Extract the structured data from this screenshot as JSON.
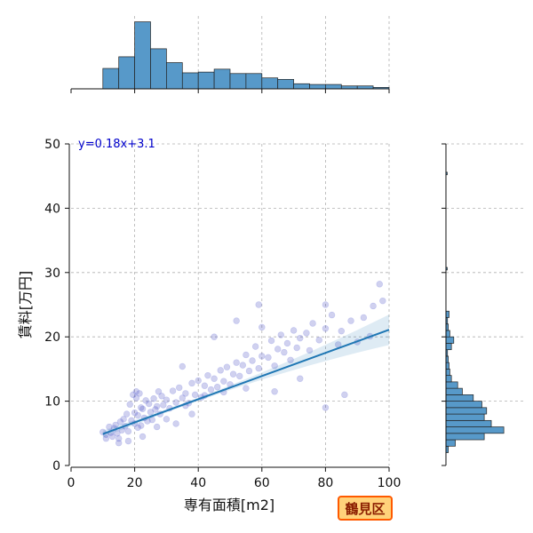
{
  "chart_data": {
    "type": "scatter",
    "xlabel": "専有面積[m2]",
    "ylabel": "賃料[万円]",
    "xlim": [
      0,
      100
    ],
    "ylim": [
      0,
      50
    ],
    "x_ticks": [
      0,
      20,
      40,
      60,
      80,
      100
    ],
    "y_ticks": [
      0,
      10,
      20,
      30,
      40,
      50
    ],
    "grid": true,
    "annotation": "y=0.18x+3.1",
    "regression": {
      "slope": 0.18,
      "intercept": 3.1,
      "x_range": [
        10,
        100
      ]
    },
    "badge": "鶴見区",
    "scatter_points": [
      [
        10,
        5.2
      ],
      [
        11,
        4.8
      ],
      [
        12,
        6.0
      ],
      [
        12.5,
        5.1
      ],
      [
        13,
        4.5
      ],
      [
        13.5,
        5.8
      ],
      [
        14,
        6.3
      ],
      [
        14.5,
        5.0
      ],
      [
        15,
        4.2
      ],
      [
        15.5,
        6.8
      ],
      [
        16,
        5.5
      ],
      [
        16.5,
        7.2
      ],
      [
        17,
        6.1
      ],
      [
        17.5,
        8.0
      ],
      [
        18,
        5.3
      ],
      [
        18.5,
        9.5
      ],
      [
        19,
        7.0
      ],
      [
        19.5,
        11.0
      ],
      [
        20,
        6.5
      ],
      [
        20,
        8.2
      ],
      [
        20.5,
        10.5
      ],
      [
        21,
        7.8
      ],
      [
        21,
        5.9
      ],
      [
        21.5,
        11.2
      ],
      [
        22,
        9.0
      ],
      [
        22,
        6.2
      ],
      [
        22.5,
        8.8
      ],
      [
        23,
        7.4
      ],
      [
        23.5,
        10.1
      ],
      [
        24,
        6.9
      ],
      [
        24.5,
        9.6
      ],
      [
        25,
        8.3
      ],
      [
        25.5,
        7.1
      ],
      [
        26,
        10.4
      ],
      [
        26.5,
        8.7
      ],
      [
        27,
        9.2
      ],
      [
        27.5,
        11.5
      ],
      [
        28,
        8.0
      ],
      [
        28.5,
        10.8
      ],
      [
        29,
        9.4
      ],
      [
        30,
        10.2
      ],
      [
        31,
        8.9
      ],
      [
        32,
        11.6
      ],
      [
        33,
        9.8
      ],
      [
        34,
        12.1
      ],
      [
        35,
        10.5
      ],
      [
        35,
        15.4
      ],
      [
        36,
        11.2
      ],
      [
        37,
        9.7
      ],
      [
        38,
        12.8
      ],
      [
        39,
        11.0
      ],
      [
        40,
        13.2
      ],
      [
        41,
        10.6
      ],
      [
        42,
        12.4
      ],
      [
        43,
        14.0
      ],
      [
        44,
        11.8
      ],
      [
        45,
        13.5
      ],
      [
        46,
        12.2
      ],
      [
        47,
        14.8
      ],
      [
        48,
        13.1
      ],
      [
        49,
        15.3
      ],
      [
        50,
        12.6
      ],
      [
        51,
        14.2
      ],
      [
        52,
        16.0
      ],
      [
        53,
        13.9
      ],
      [
        54,
        15.6
      ],
      [
        55,
        17.2
      ],
      [
        55,
        12.0
      ],
      [
        56,
        14.7
      ],
      [
        57,
        16.3
      ],
      [
        58,
        18.5
      ],
      [
        59,
        15.1
      ],
      [
        60,
        17.0
      ],
      [
        60,
        21.5
      ],
      [
        62,
        16.8
      ],
      [
        63,
        19.4
      ],
      [
        64,
        15.5
      ],
      [
        65,
        18.1
      ],
      [
        66,
        20.3
      ],
      [
        67,
        17.6
      ],
      [
        68,
        19.0
      ],
      [
        69,
        16.4
      ],
      [
        70,
        21.0
      ],
      [
        71,
        18.3
      ],
      [
        72,
        19.8
      ],
      [
        74,
        20.6
      ],
      [
        75,
        17.9
      ],
      [
        76,
        22.1
      ],
      [
        78,
        19.5
      ],
      [
        80,
        21.3
      ],
      [
        80,
        25.0
      ],
      [
        80,
        9.0
      ],
      [
        82,
        23.4
      ],
      [
        84,
        18.8
      ],
      [
        85,
        20.9
      ],
      [
        86,
        11.0
      ],
      [
        88,
        22.5
      ],
      [
        90,
        19.2
      ],
      [
        92,
        23.0
      ],
      [
        94,
        20.1
      ],
      [
        95,
        24.8
      ],
      [
        97,
        28.2
      ],
      [
        98,
        25.6
      ],
      [
        59,
        25.0
      ],
      [
        52,
        22.5
      ],
      [
        45,
        20.0
      ],
      [
        33,
        6.5
      ],
      [
        38,
        8.0
      ],
      [
        64,
        11.5
      ],
      [
        72,
        13.5
      ],
      [
        20.5,
        11.5
      ],
      [
        22.5,
        4.5
      ],
      [
        18,
        3.8
      ],
      [
        15,
        3.5
      ],
      [
        11,
        4.2
      ],
      [
        27,
        6.0
      ],
      [
        30,
        7.2
      ],
      [
        36,
        9.3
      ],
      [
        42,
        10.9
      ],
      [
        48,
        11.4
      ]
    ],
    "top_histogram": {
      "bin_edges": [
        5,
        10,
        15,
        20,
        25,
        30,
        35,
        40,
        45,
        50,
        55,
        60,
        65,
        70,
        75,
        80,
        85,
        90,
        95,
        100
      ],
      "relative_heights": [
        0,
        0.28,
        0.44,
        0.92,
        0.55,
        0.36,
        0.22,
        0.23,
        0.27,
        0.21,
        0.21,
        0.15,
        0.13,
        0.07,
        0.06,
        0.06,
        0.04,
        0.04,
        0.02
      ]
    },
    "right_histogram": {
      "bin_edges": [
        2,
        3,
        4,
        5,
        6,
        7,
        8,
        9,
        10,
        11,
        12,
        13,
        14,
        15,
        16,
        17,
        18,
        19,
        20,
        21,
        22,
        23,
        24,
        25
      ],
      "relative_lengths": [
        0.03,
        0.12,
        0.49,
        0.74,
        0.58,
        0.49,
        0.52,
        0.46,
        0.35,
        0.21,
        0.15,
        0.07,
        0.05,
        0.04,
        0.03,
        0.02,
        0.07,
        0.1,
        0.05,
        0.03,
        0.02,
        0.04,
        0.0
      ]
    }
  }
}
